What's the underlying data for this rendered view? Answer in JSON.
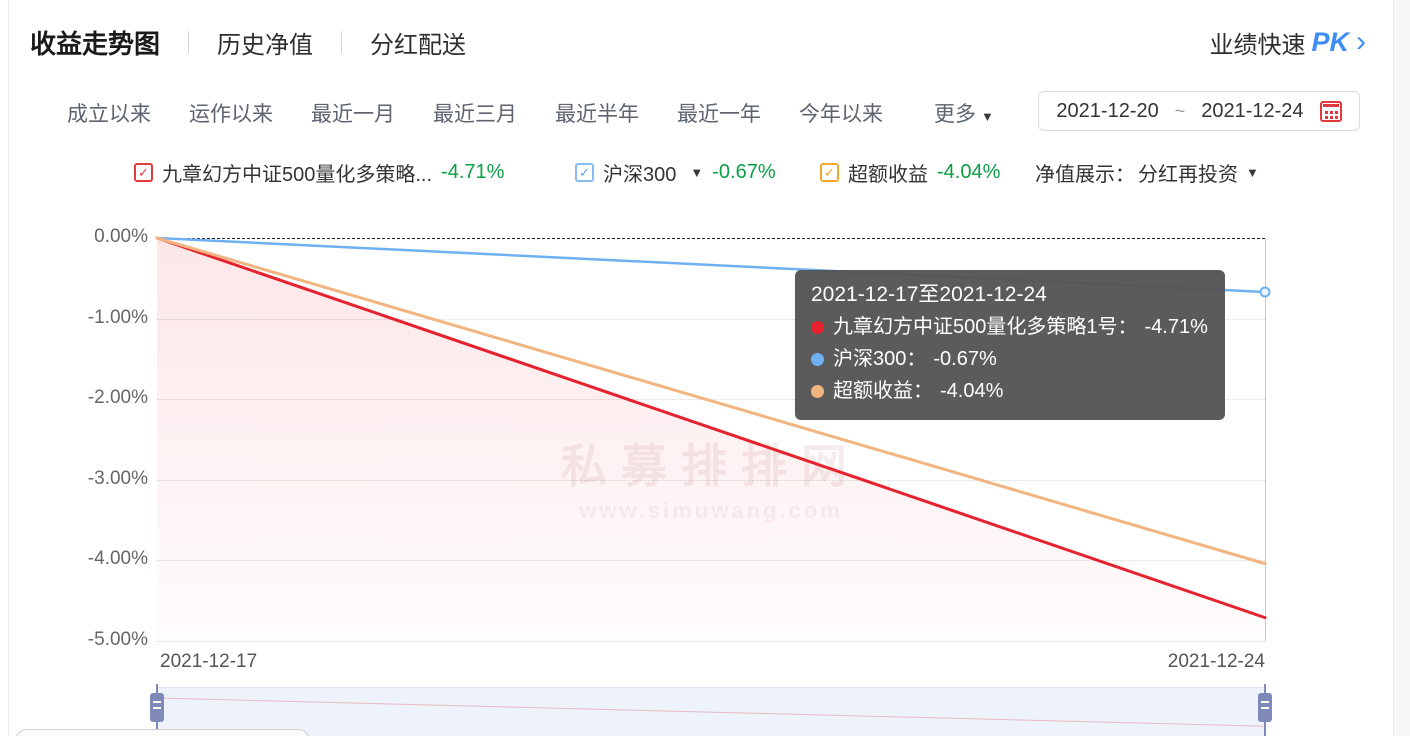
{
  "header": {
    "title": "收益走势图",
    "tabs": [
      "历史净值",
      "分红配送"
    ],
    "pk_prefix": "业绩快速",
    "pk_label": "PK",
    "pk_chevron": "›"
  },
  "filters": {
    "ranges": [
      "成立以来",
      "运作以来",
      "最近一月",
      "最近三月",
      "最近半年",
      "最近一年",
      "今年以来"
    ],
    "more": "更多",
    "date_start": "2021-12-20",
    "date_separator": "~",
    "date_end": "2021-12-24"
  },
  "legend": {
    "items": [
      {
        "label": "九章幻方中证500量化多策略...",
        "value": "-4.71%",
        "color": "#e6222e",
        "checked": true
      },
      {
        "label": "沪深300",
        "value": "-0.67%",
        "color": "#6eb1f2",
        "checked": true,
        "dropdown": true
      },
      {
        "label": "超额收益",
        "value": "-4.04%",
        "color": "#f2b480",
        "checked": true
      }
    ],
    "net_display_label": "净值展示：",
    "net_display_value": "分红再投资"
  },
  "chart_data": {
    "type": "line",
    "x": [
      "2021-12-17",
      "2021-12-24"
    ],
    "series": [
      {
        "name": "九章幻方中证500量化多策略1号",
        "values": [
          0,
          -4.71
        ],
        "color": "#e6222e",
        "width": 3,
        "area": true
      },
      {
        "name": "沪深300",
        "values": [
          0,
          -0.67
        ],
        "color": "#6eb1f2",
        "width": 2.5,
        "end_marker": true
      },
      {
        "name": "超额收益",
        "values": [
          0,
          -4.04
        ],
        "color": "#f2b480",
        "width": 3
      }
    ],
    "unit": "percent",
    "ylim": [
      -5,
      0
    ],
    "yticks": [
      0,
      -1,
      -2,
      -3,
      -4,
      -5
    ],
    "ytick_labels": [
      "0.00%",
      "-1.00%",
      "-2.00%",
      "-3.00%",
      "-4.00%",
      "-5.00%"
    ],
    "grid": true,
    "legend_position": "top",
    "title": "",
    "xlabel": "",
    "ylabel": ""
  },
  "tooltip": {
    "title": "2021-12-17至2021-12-24",
    "rows": [
      {
        "name": "九章幻方中证500量化多策略1号：",
        "value": "-4.71%",
        "color": "#e6222e"
      },
      {
        "name": "沪深300：",
        "value": "-0.67%",
        "color": "#6eb1f2"
      },
      {
        "name": "超额收益：",
        "value": "-4.04%",
        "color": "#f2b480"
      }
    ]
  },
  "watermark": {
    "line1": "私募排排网",
    "line2": "www.simuwang.com"
  },
  "icons": {
    "caret_down": "▼",
    "check": "✓"
  },
  "colors": {
    "accent_blue": "#3d8df5",
    "value_green": "#0aa045",
    "series_red": "#e6222e",
    "series_blue": "#6eb1f2",
    "series_orange": "#f2b480",
    "tooltip_bg": "rgba(82,82,82,0.95)"
  }
}
